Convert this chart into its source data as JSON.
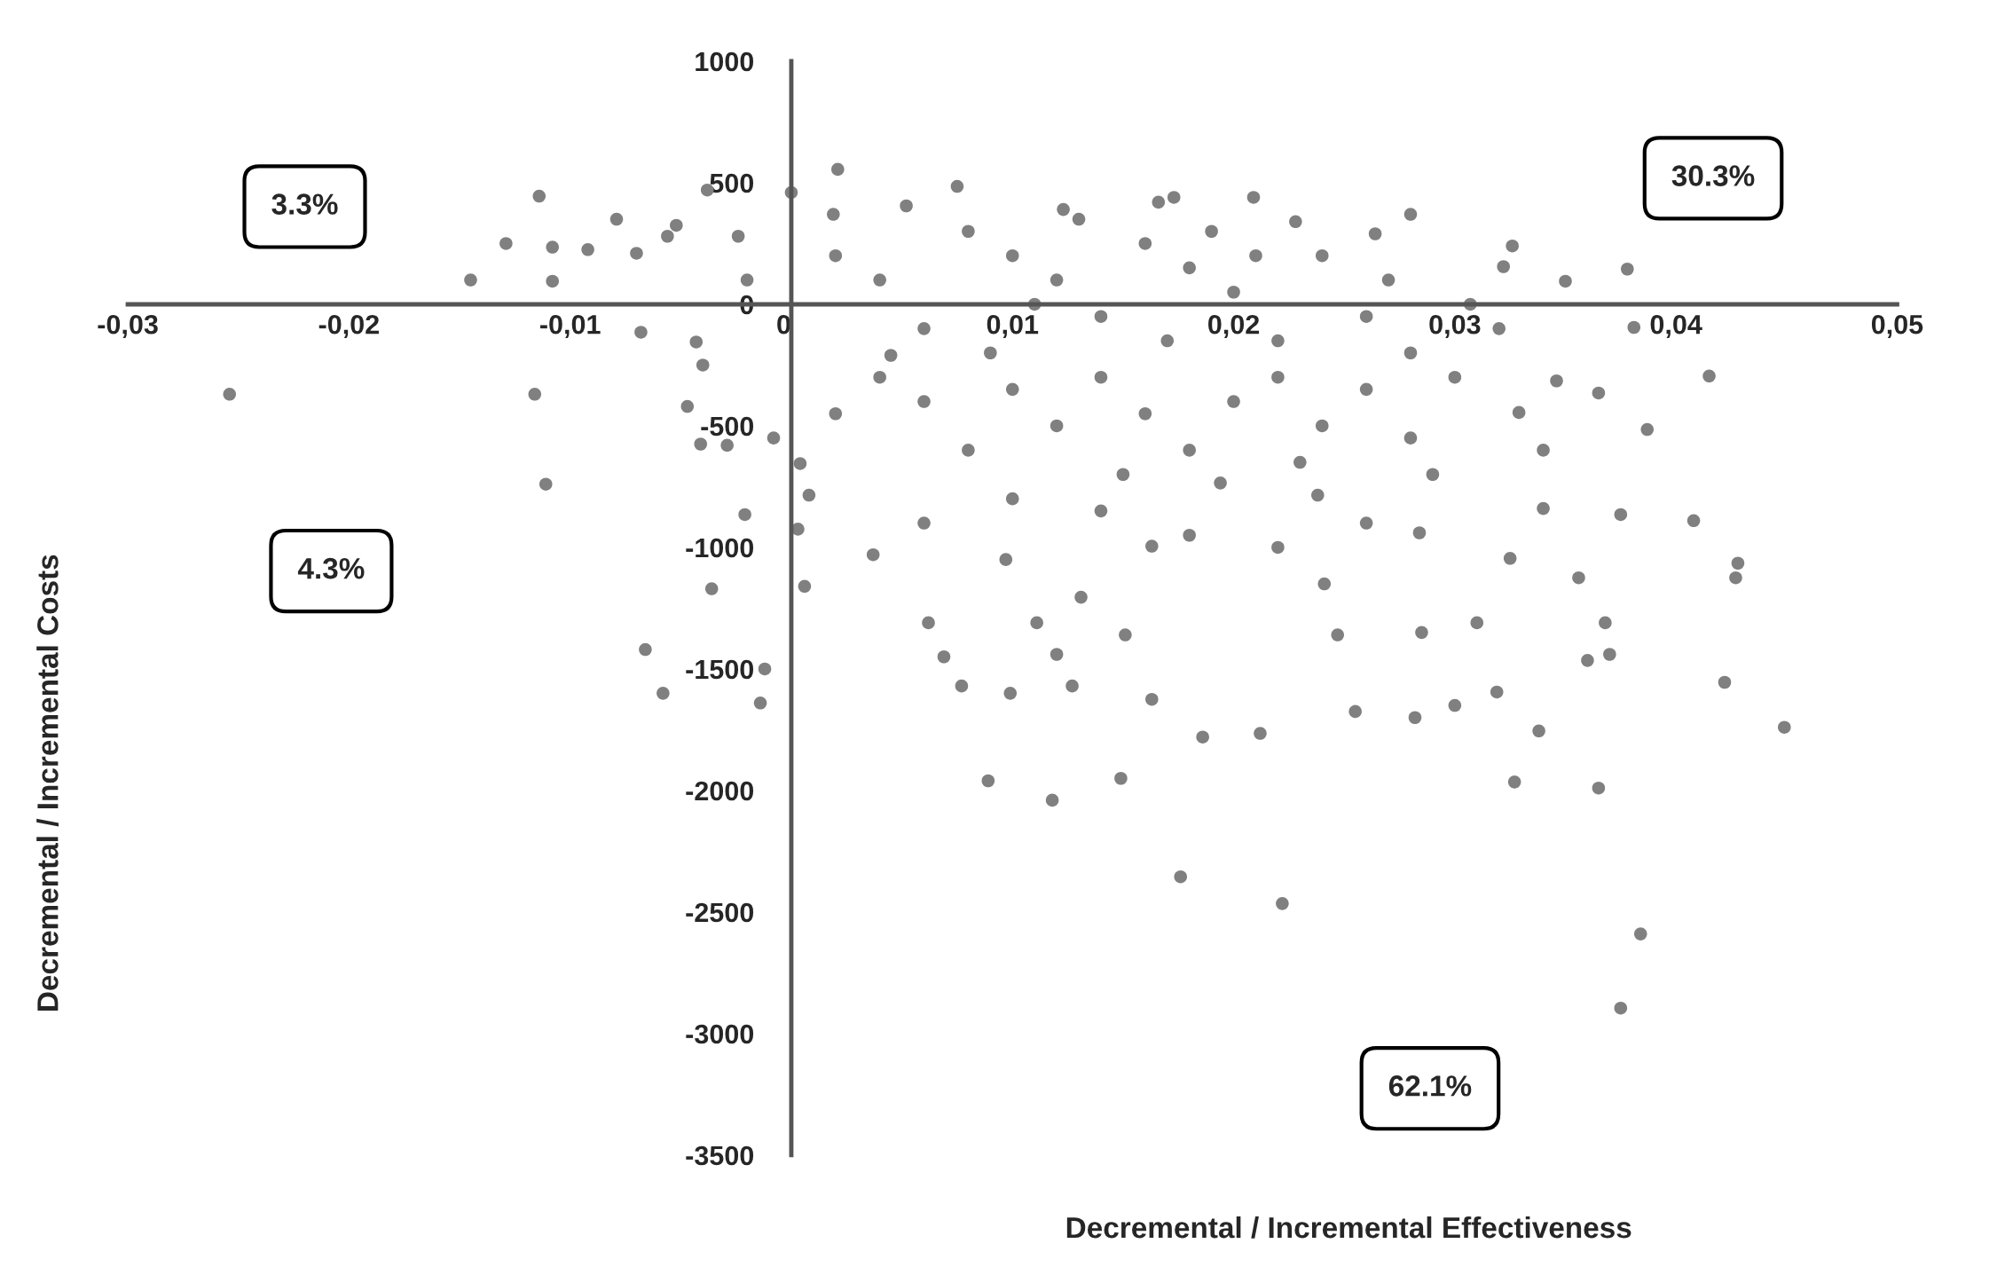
{
  "chart_data": {
    "type": "scatter",
    "xlabel": "Decremental / Incremental Effectiveness",
    "ylabel": "Decremental / Incremental Costs",
    "annotations": [
      "3.3%",
      "30.3%",
      "4.3%",
      "62.1%"
    ],
    "xlim": [
      -0.03,
      0.05
    ],
    "ylim": [
      -3500,
      1000
    ],
    "xticks": [
      {
        "value": -0.03,
        "label": "-0,03"
      },
      {
        "value": -0.02,
        "label": "-0,02"
      },
      {
        "value": -0.01,
        "label": "-0,01"
      },
      0,
      {
        "value": 0.01,
        "label": "0,01"
      },
      {
        "value": 0.02,
        "label": "0,02"
      },
      {
        "value": 0.03,
        "label": "0,03"
      },
      {
        "value": 0.04,
        "label": "0,04"
      },
      {
        "value": 0.05,
        "label": "0,05"
      }
    ],
    "yticks": [
      -3500,
      -3000,
      -2500,
      -2000,
      -1500,
      -1000,
      -500,
      0,
      500,
      1000
    ],
    "grid": false,
    "marker": "circle",
    "series": [
      {
        "color": "#808080",
        "x": [
          -0.0254,
          -0.0145,
          -0.0129,
          -0.0114,
          -0.0108,
          -0.0108,
          -0.0116,
          -0.0111,
          -0.0092,
          -0.0079,
          -0.007,
          -0.0068,
          -0.0066,
          -0.0058,
          -0.0056,
          -0.0052,
          -0.0038,
          -0.0043,
          -0.0047,
          -0.0041,
          -0.0036,
          -0.0029,
          -0.0024,
          -0.0021,
          -0.0014,
          -0.0012,
          -0.0008,
          0,
          0.0003,
          0.0006,
          0.0004,
          0.0008,
          0.0021,
          0.0019,
          0.0037,
          0.0052,
          0.0045,
          0.0062,
          0.0069,
          0.0075,
          0.0077,
          0.0089,
          0.0099,
          0.0097,
          0.0111,
          0.0118,
          0.012,
          0.0127,
          0.0123,
          0.0131,
          0.0149,
          0.0151,
          0.0163,
          0.0166,
          0.0173,
          0.0176,
          0.0163,
          0.0186,
          0.0194,
          0.0209,
          0.0212,
          0.0222,
          0.0228,
          0.0238,
          0.0241,
          0.0247,
          0.0255,
          0.0264,
          0.028,
          0.0282,
          0.0284,
          0.0285,
          0.03,
          0.0307,
          0.031,
          0.0319,
          0.0322,
          0.0326,
          0.0327,
          0.0329,
          0.0325,
          0.0338,
          0.034,
          0.0346,
          0.035,
          0.0356,
          0.036,
          0.0365,
          0.0365,
          0.0368,
          0.037,
          0.0375,
          0.0375,
          0.0378,
          0.0381,
          0.0384,
          0.0387,
          0.0408,
          0.0415,
          0.0422,
          0.0427,
          0.0428,
          0.0449,
          0.002,
          0.004,
          0.006,
          0.008,
          0.01,
          0.012,
          0.014,
          0.016,
          0.018,
          0.02,
          0.022,
          0.024,
          0.026,
          0.028,
          0.03,
          0.006,
          0.008,
          0.01,
          0.012,
          0.014,
          0.016,
          0.018,
          0.02,
          0.022,
          0.024,
          0.026,
          0.028,
          0.01,
          0.014,
          0.018,
          0.022,
          0.026,
          0.006,
          0.004,
          0.002,
          -0.002,
          -0.004,
          0.032,
          0.034,
          0.013,
          0.019,
          0.011,
          0.017,
          0.021,
          0.015,
          0.029,
          0.009,
          0.023,
          0.027
        ],
        "values": [
          -370,
          100,
          250,
          445,
          235,
          95,
          -370,
          -740,
          225,
          350,
          210,
          -115,
          -1420,
          -1600,
          280,
          325,
          470,
          -155,
          -420,
          -575,
          -1170,
          -580,
          280,
          -865,
          -1640,
          -1500,
          -550,
          460,
          -925,
          -1160,
          -655,
          -785,
          555,
          370,
          -1030,
          405,
          -210,
          -1310,
          -1450,
          485,
          -1570,
          -1960,
          -1600,
          -1050,
          -1310,
          -2040,
          -1440,
          -1570,
          390,
          -1205,
          -1950,
          -1360,
          -995,
          420,
          440,
          -2355,
          -1625,
          -1780,
          -735,
          440,
          -1765,
          -2465,
          340,
          -785,
          -1150,
          -1360,
          -1675,
          290,
          370,
          -1700,
          -940,
          -1350,
          -1650,
          0,
          -1310,
          -1595,
          155,
          240,
          -1965,
          -445,
          -1045,
          -1755,
          -840,
          -315,
          95,
          -1125,
          -1465,
          -1990,
          -365,
          -1310,
          -1440,
          -2895,
          -865,
          145,
          -95,
          -2590,
          -515,
          -890,
          -295,
          -1555,
          -1125,
          -1065,
          -1740,
          200,
          100,
          -100,
          300,
          200,
          100,
          -50,
          250,
          150,
          50,
          -150,
          200,
          -50,
          -200,
          -300,
          -400,
          -600,
          -350,
          -500,
          -300,
          -450,
          -600,
          -400,
          -300,
          -500,
          -350,
          -550,
          -800,
          -850,
          -950,
          -1000,
          -900,
          -900,
          -300,
          -450,
          100,
          -250,
          -100,
          -600,
          350,
          300,
          0,
          -150,
          200,
          -700,
          -700,
          -200,
          -650,
          100
        ]
      }
    ]
  }
}
